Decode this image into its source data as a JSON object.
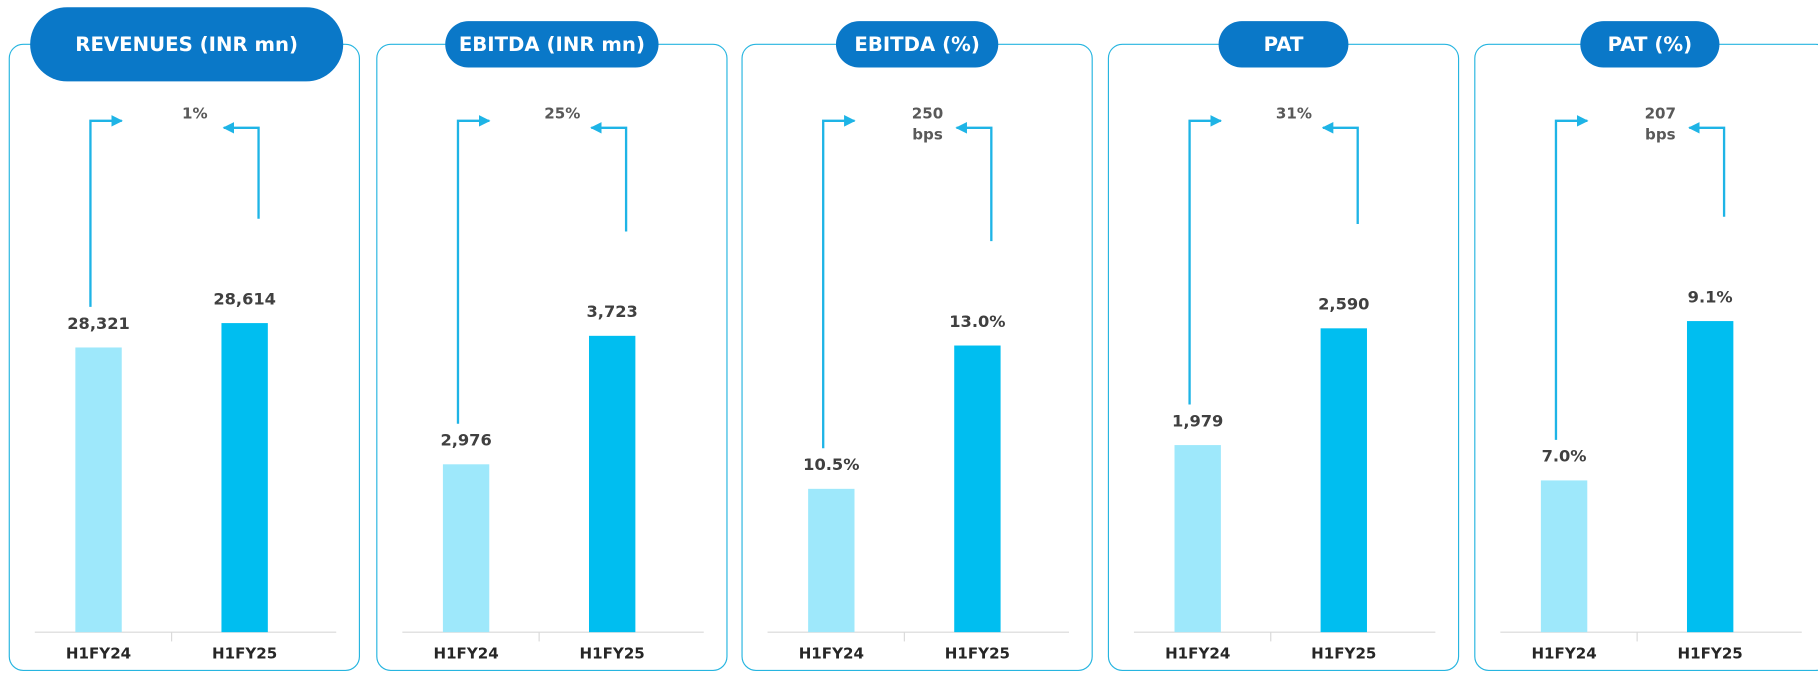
{
  "chart_data": [
    {
      "type": "bar",
      "title": "REVENUES (INR mn)",
      "categories": [
        "H1FY24",
        "H1FY25"
      ],
      "values": [
        28321,
        28614
      ],
      "value_labels": [
        "28,321",
        "28,614"
      ],
      "colors": [
        "#9ee8fb",
        "#00bef0"
      ],
      "annotation": "1%",
      "ylim": [
        24900,
        31100
      ]
    },
    {
      "type": "bar",
      "title": "EBITDA (INR mn)",
      "categories": [
        "H1FY24",
        "H1FY25"
      ],
      "values": [
        2976,
        3723
      ],
      "value_labels": [
        "2,976",
        "3,723"
      ],
      "colors": [
        "#9ee8fb",
        "#00bef0"
      ],
      "annotation": "25%",
      "ylim": [
        2000,
        5000
      ]
    },
    {
      "type": "bar",
      "title": "EBITDA (%)",
      "categories": [
        "H1FY24",
        "H1FY25"
      ],
      "values": [
        10.5,
        13.0
      ],
      "value_labels": [
        "10.5%",
        "13.0%"
      ],
      "colors": [
        "#9ee8fb",
        "#00bef0"
      ],
      "annotation": "250 bps",
      "ylim": [
        8,
        17
      ]
    },
    {
      "type": "bar",
      "title": "PAT",
      "categories": [
        "H1FY24",
        "H1FY25"
      ],
      "values": [
        1979,
        2590
      ],
      "value_labels": [
        "1,979",
        "2,590"
      ],
      "colors": [
        "#9ee8fb",
        "#00bef0"
      ],
      "annotation": "31%",
      "ylim": [
        1000,
        3700
      ]
    },
    {
      "type": "bar",
      "title": "PAT (%)",
      "categories": [
        "H1FY24",
        "H1FY25"
      ],
      "values": [
        7.0,
        9.1
      ],
      "value_labels": [
        "7.0%",
        "9.1%"
      ],
      "colors": [
        "#9ee8fb",
        "#00bef0"
      ],
      "annotation": "207 bps",
      "ylim": [
        5,
        11.8
      ]
    }
  ]
}
